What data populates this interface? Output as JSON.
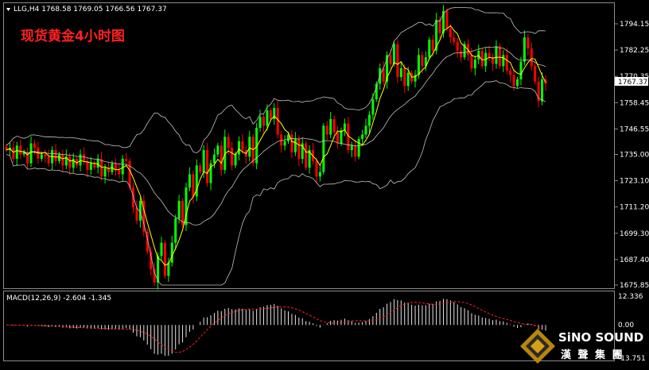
{
  "chart_data": [
    {
      "type": "candlestick",
      "header": "LLG,H4  1768.58 1769.05 1766.56 1767.37",
      "title": "现货黄金4小时图",
      "price_label": "1767.37",
      "ylim": [
        1675.85,
        1800.0
      ],
      "yticks": [
        "1794.15",
        "1782.25",
        "1770.35",
        "1758.45",
        "1746.55",
        "1735.00",
        "1723.10",
        "1711.20",
        "1699.30",
        "1687.40",
        "1675.85"
      ],
      "colors": {
        "up": "#00ff00",
        "down": "#ff0000",
        "ma_fast": "#ffff00",
        "bands": "#c0c0c0",
        "background": "#000000"
      },
      "close": [
        1737,
        1738,
        1733,
        1739,
        1735,
        1736,
        1731,
        1740,
        1738,
        1733,
        1735,
        1734,
        1731,
        1737,
        1732,
        1735,
        1730,
        1734,
        1729,
        1733,
        1730,
        1735,
        1732,
        1728,
        1731,
        1729,
        1733,
        1725,
        1729,
        1727,
        1731,
        1728,
        1726,
        1733,
        1732,
        1720,
        1711,
        1705,
        1714,
        1700,
        1691,
        1683,
        1677,
        1689,
        1695,
        1680,
        1686,
        1695,
        1706,
        1714,
        1703,
        1720,
        1726,
        1716,
        1730,
        1727,
        1737,
        1722,
        1731,
        1735,
        1739,
        1728,
        1743,
        1738,
        1730,
        1735,
        1741,
        1737,
        1734,
        1743,
        1731,
        1747,
        1752,
        1748,
        1755,
        1751,
        1756,
        1744,
        1739,
        1741,
        1744,
        1736,
        1742,
        1733,
        1740,
        1729,
        1737,
        1732,
        1725,
        1727,
        1748,
        1744,
        1751,
        1745,
        1740,
        1746,
        1749,
        1737,
        1739,
        1734,
        1742,
        1744,
        1748,
        1753,
        1760,
        1767,
        1774,
        1768,
        1780,
        1776,
        1785,
        1770,
        1774,
        1766,
        1772,
        1768,
        1771,
        1780,
        1775,
        1779,
        1787,
        1782,
        1796,
        1790,
        1800,
        1792,
        1788,
        1786,
        1782,
        1779,
        1785,
        1780,
        1774,
        1778,
        1782,
        1775,
        1781,
        1779,
        1776,
        1784,
        1775,
        1780,
        1773,
        1771,
        1766,
        1769,
        1777,
        1788,
        1783,
        1775,
        1768,
        1759,
        1769,
        1767
      ],
      "macd": {
        "label": "MACD(12,26,9) -2.604 -1.345",
        "ylim_labels": [
          "12.336",
          "0.00",
          "-13.751"
        ]
      }
    }
  ],
  "logo": {
    "name": "SiNO SOUND",
    "sub": "漢 聲 集 團"
  }
}
